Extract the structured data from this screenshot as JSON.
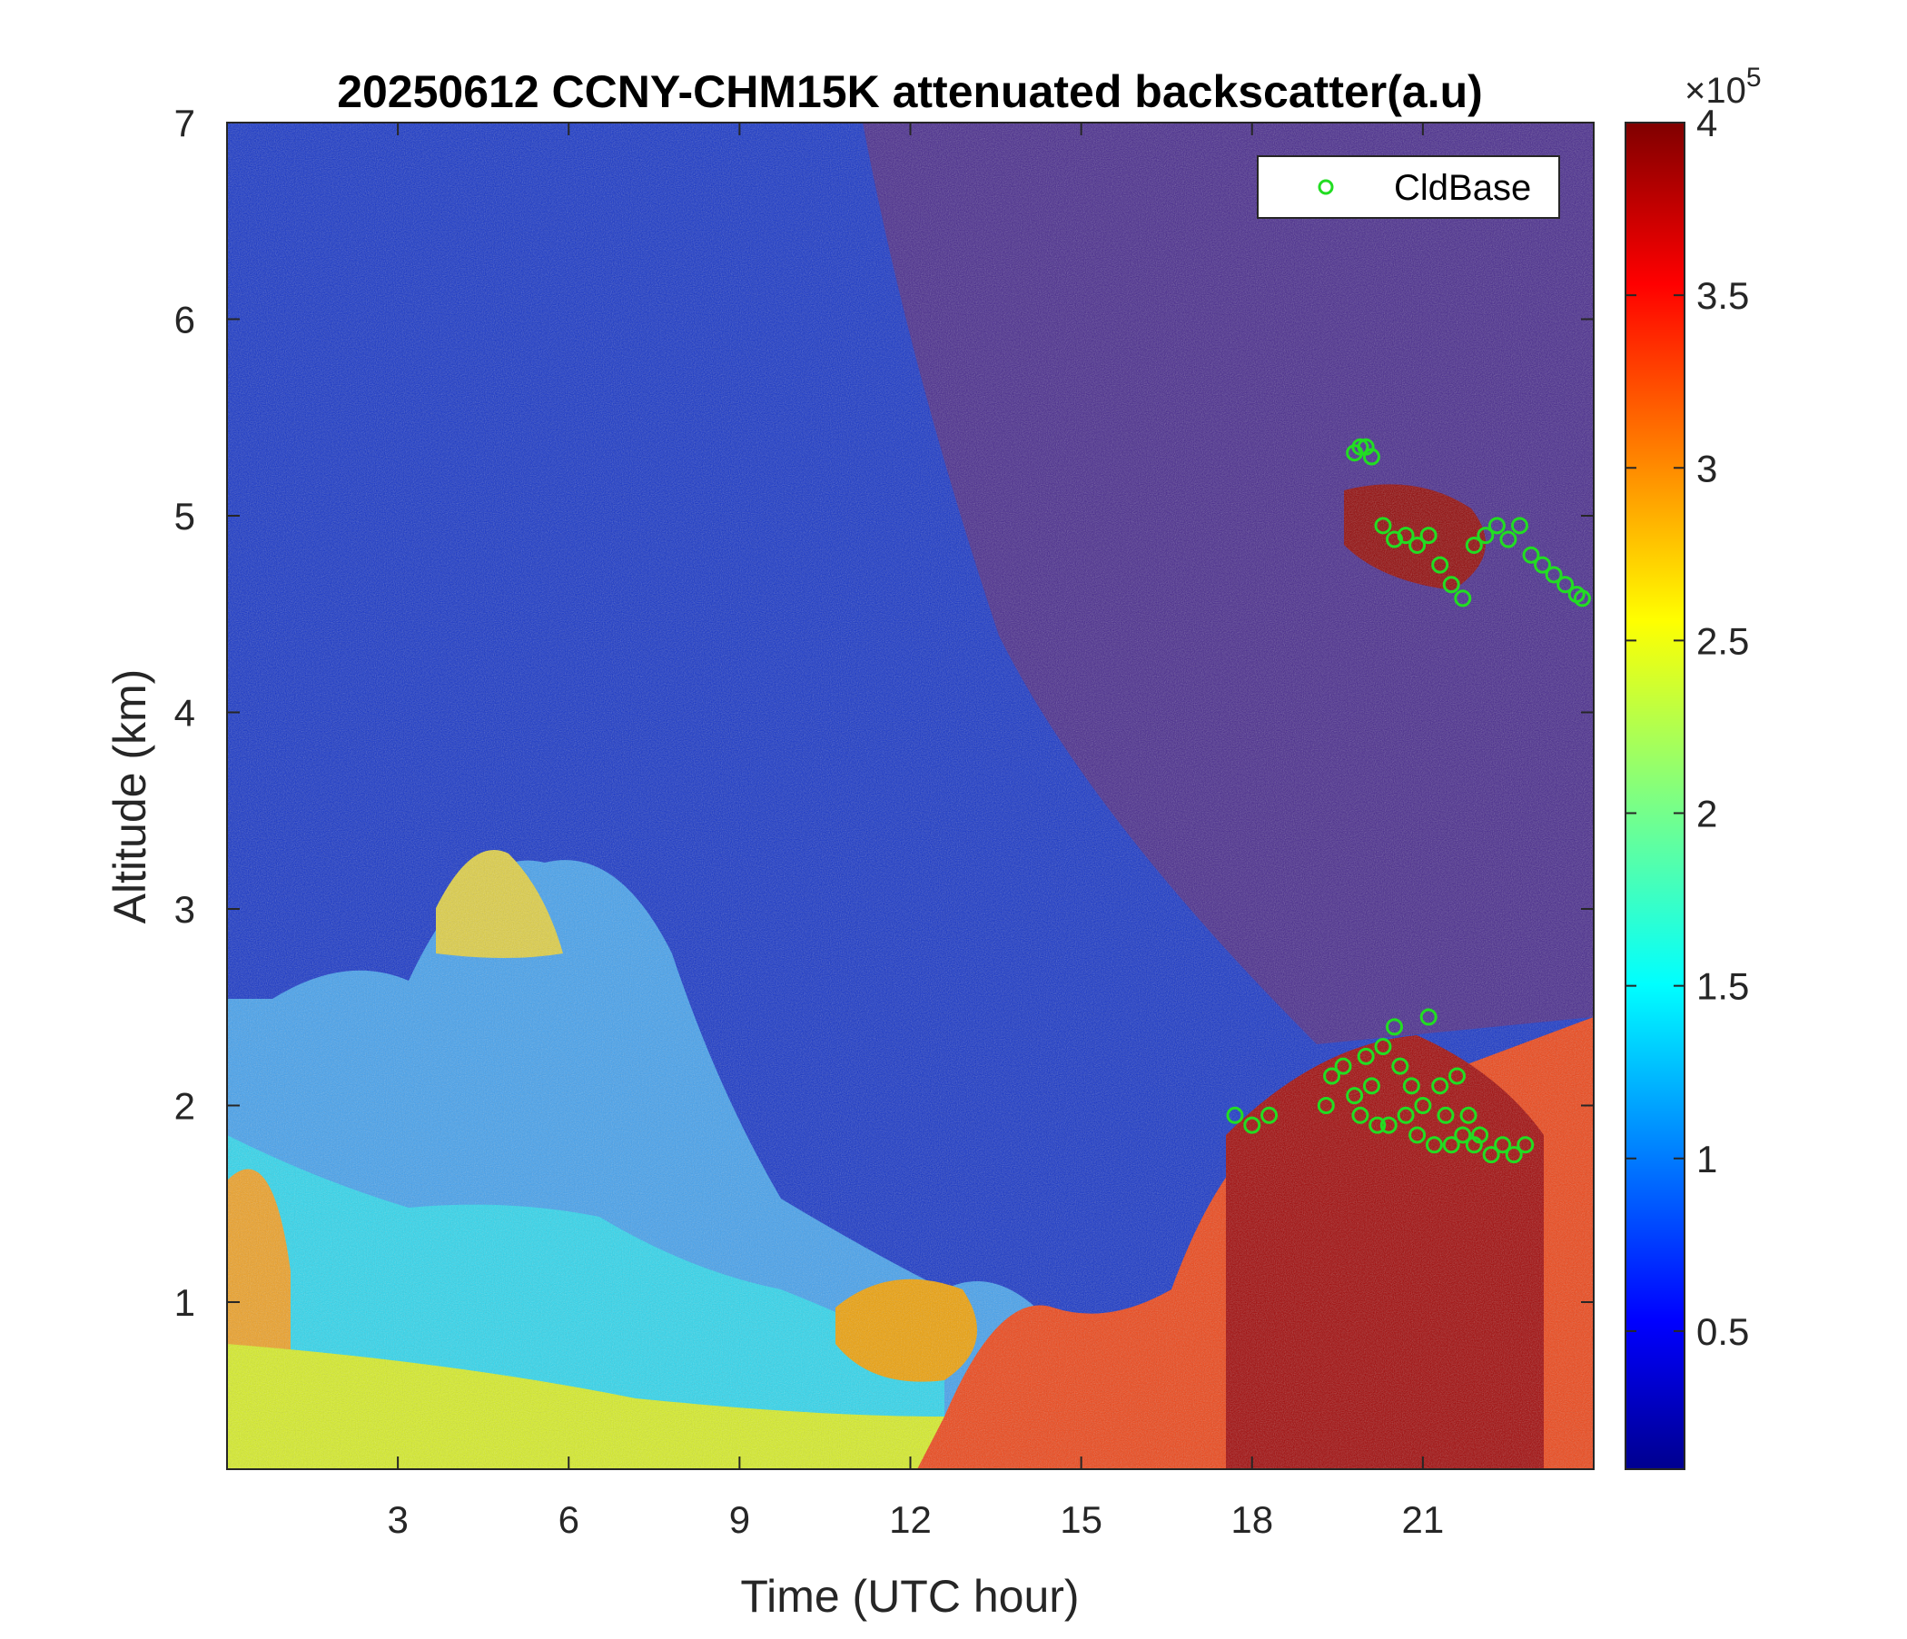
{
  "chart_data": {
    "type": "heatmap",
    "title": "20250612 CCNY-CHM15K attenuated backscatter(a.u)",
    "xlabel": "Time (UTC hour)",
    "ylabel": "Altitude (km)",
    "xlim": [
      0,
      24
    ],
    "ylim": [
      0.15,
      7
    ],
    "x_ticks": [
      3,
      6,
      9,
      12,
      15,
      18,
      21
    ],
    "x_tick_labels": [
      "3",
      "6",
      "9",
      "12",
      "15",
      "18",
      "21"
    ],
    "y_ticks": [
      1,
      2,
      3,
      4,
      5,
      6,
      7
    ],
    "y_tick_labels": [
      "1",
      "2",
      "3",
      "4",
      "5",
      "6",
      "7"
    ],
    "colorbar": {
      "colormap": "jet",
      "clim": [
        0.1,
        4
      ],
      "ticks": [
        0.5,
        1,
        1.5,
        2,
        2.5,
        3,
        3.5,
        4
      ],
      "tick_labels": [
        "0.5",
        "1",
        "1.5",
        "2",
        "2.5",
        "3",
        "3.5",
        "4"
      ],
      "exponent_label": "×10",
      "exponent_power": "5"
    },
    "legend": {
      "position": "top-right",
      "entries": [
        "CldBase"
      ]
    },
    "series": [
      {
        "name": "CldBase",
        "marker": "circle",
        "color": "#22dd22",
        "points": [
          [
            17.7,
            1.95
          ],
          [
            18.0,
            1.9
          ],
          [
            18.3,
            1.95
          ],
          [
            19.3,
            2.0
          ],
          [
            19.4,
            2.15
          ],
          [
            19.6,
            2.2
          ],
          [
            19.8,
            2.05
          ],
          [
            19.9,
            1.95
          ],
          [
            20.0,
            2.25
          ],
          [
            20.1,
            2.1
          ],
          [
            20.2,
            1.9
          ],
          [
            20.3,
            2.3
          ],
          [
            20.4,
            1.9
          ],
          [
            20.5,
            2.4
          ],
          [
            20.6,
            2.2
          ],
          [
            20.7,
            1.95
          ],
          [
            20.8,
            2.1
          ],
          [
            20.9,
            1.85
          ],
          [
            21.0,
            2.0
          ],
          [
            21.1,
            2.45
          ],
          [
            21.2,
            1.8
          ],
          [
            21.3,
            2.1
          ],
          [
            21.4,
            1.95
          ],
          [
            21.5,
            1.8
          ],
          [
            21.6,
            2.15
          ],
          [
            21.7,
            1.85
          ],
          [
            21.8,
            1.95
          ],
          [
            21.9,
            1.8
          ],
          [
            22.0,
            1.85
          ],
          [
            22.2,
            1.75
          ],
          [
            22.4,
            1.8
          ],
          [
            22.6,
            1.75
          ],
          [
            22.8,
            1.8
          ],
          [
            19.8,
            5.32
          ],
          [
            19.9,
            5.35
          ],
          [
            20.0,
            5.35
          ],
          [
            20.1,
            5.3
          ],
          [
            20.3,
            4.95
          ],
          [
            20.5,
            4.88
          ],
          [
            20.7,
            4.9
          ],
          [
            20.9,
            4.85
          ],
          [
            21.1,
            4.9
          ],
          [
            21.3,
            4.75
          ],
          [
            21.5,
            4.65
          ],
          [
            21.7,
            4.58
          ],
          [
            21.9,
            4.85
          ],
          [
            22.1,
            4.9
          ],
          [
            22.3,
            4.95
          ],
          [
            22.5,
            4.88
          ],
          [
            22.7,
            4.95
          ],
          [
            22.9,
            4.8
          ],
          [
            23.1,
            4.75
          ],
          [
            23.3,
            4.7
          ],
          [
            23.5,
            4.65
          ],
          [
            23.7,
            4.6
          ],
          [
            23.8,
            4.58
          ]
        ]
      }
    ]
  }
}
